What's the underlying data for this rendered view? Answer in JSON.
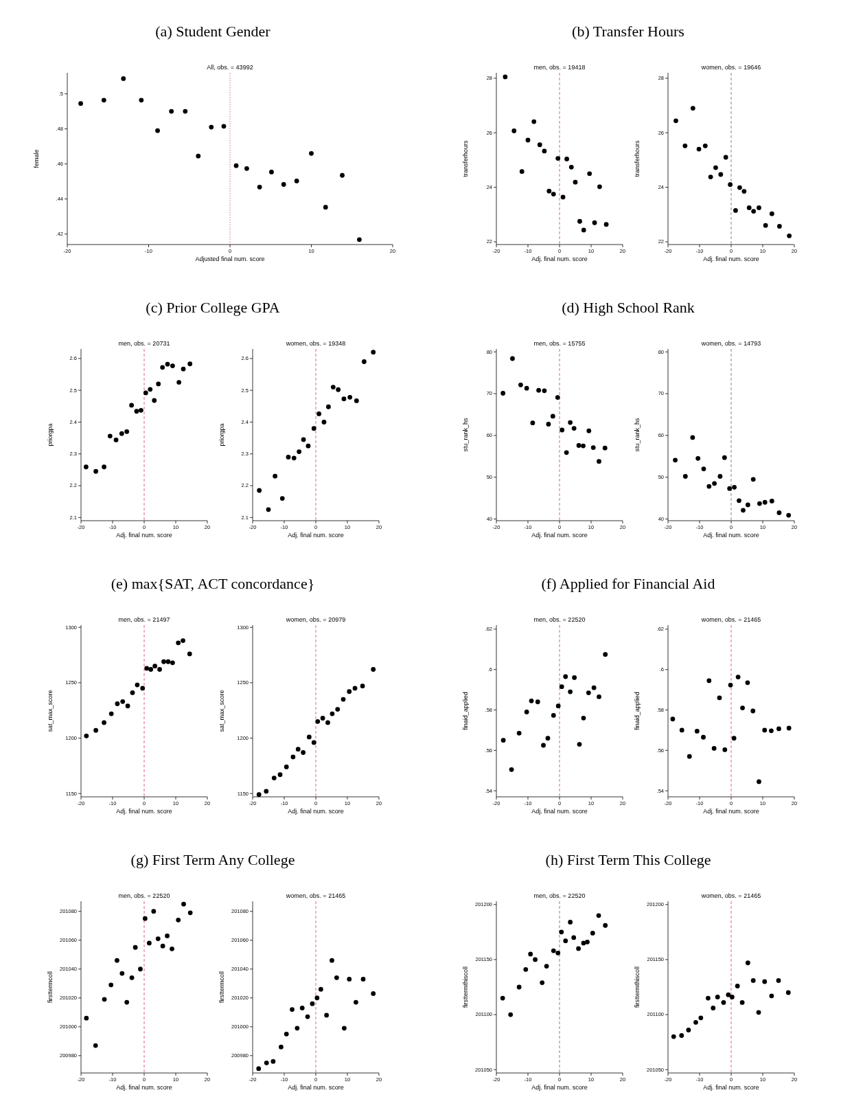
{
  "chart_data": [
    {
      "type": "scatter",
      "title": "(a) Student Gender",
      "subtitle": "All, obs. = 43992",
      "xlabel": "Adjusted final num. score",
      "ylabel": "female",
      "marker": "circle",
      "xlim": [
        -20,
        20
      ],
      "xticks": [
        -20,
        -10,
        0,
        10,
        20
      ],
      "ylim": [
        0.414,
        0.512
      ],
      "yticks": [
        {
          "value": 0.42,
          "label": ".42"
        },
        {
          "value": 0.44,
          "label": ".44"
        },
        {
          "value": 0.46,
          "label": ".46"
        },
        {
          "value": 0.48,
          "label": ".48"
        },
        {
          "value": 0.5,
          "label": ".5"
        }
      ],
      "ref_lines": [
        {
          "axis": "x",
          "value": 0,
          "color": "#e0607e",
          "line_style": "dotted"
        }
      ],
      "x": [
        -18.35,
        -15.5,
        -13.1,
        -10.9,
        -8.9,
        -7.2,
        -5.5,
        -3.9,
        -2.3,
        -0.76,
        0.76,
        2.06,
        3.64,
        5.1,
        6.6,
        8.2,
        10.0,
        11.75,
        13.8,
        15.9
      ],
      "series": [
        {
          "color": "#000000",
          "values": [
            0.4945,
            0.4964,
            0.5087,
            0.4964,
            0.479,
            0.49,
            0.49,
            0.4645,
            0.481,
            0.4815,
            0.459,
            0.4574,
            0.4468,
            0.4554,
            0.4483,
            0.4503,
            0.466,
            0.4353,
            0.4535,
            0.4168
          ]
        }
      ]
    },
    {
      "type": "scatter",
      "title": "(b) Transfer Hours",
      "subtitle": "men, obs. = 19418",
      "xlabel": "Adj. final num. score",
      "ylabel": "transferhours",
      "marker": "circle",
      "xlim": [
        -20,
        20
      ],
      "xticks": [
        -20,
        -10,
        0,
        10,
        20
      ],
      "ylim": [
        21.9,
        28.2
      ],
      "yticks": [
        22,
        24,
        26,
        28
      ],
      "ref_lines": [
        {
          "axis": "x",
          "value": 0,
          "color": "#e0607e",
          "line_style": "dashed"
        }
      ],
      "x": [
        -17.2,
        -14.4,
        -11.9,
        -10.0,
        -8.1,
        -6.25,
        -4.8,
        -3.3,
        -1.9,
        -0.5,
        1.1,
        2.3,
        3.75,
        5.0,
        6.4,
        7.66,
        9.5,
        11.1,
        12.7,
        14.8
      ],
      "series": [
        {
          "color": "#000000",
          "values": [
            28.05,
            26.07,
            24.58,
            25.73,
            26.41,
            25.56,
            25.33,
            23.86,
            23.75,
            25.06,
            23.64,
            25.04,
            24.74,
            24.19,
            22.75,
            22.43,
            24.5,
            22.7,
            24.02,
            22.64
          ]
        }
      ]
    },
    {
      "type": "scatter",
      "subtitle": "women, obs. = 19646",
      "xlabel": "Adj. final num. score",
      "ylabel": "transferhours",
      "marker": "circle",
      "xlim": [
        -20,
        20
      ],
      "xticks": [
        -20,
        -10,
        0,
        10,
        20
      ],
      "ylim": [
        21.9,
        28.2
      ],
      "yticks": [
        22,
        24,
        26,
        28
      ],
      "ref_lines": [
        {
          "axis": "x",
          "value": 0,
          "color": "#808080",
          "line_style": "dashed"
        }
      ],
      "x": [
        -17.5,
        -14.6,
        -12.1,
        -10.2,
        -8.2,
        -6.5,
        -4.9,
        -3.3,
        -1.7,
        -0.3,
        1.4,
        2.7,
        4.1,
        5.7,
        7.1,
        8.8,
        10.9,
        12.9,
        15.3,
        18.4
      ],
      "series": [
        {
          "color": "#000000",
          "values": [
            26.44,
            25.52,
            26.9,
            25.4,
            25.52,
            24.38,
            24.72,
            24.47,
            25.1,
            24.1,
            23.15,
            23.99,
            23.85,
            23.25,
            23.12,
            23.25,
            22.6,
            23.03,
            22.57,
            22.22
          ]
        }
      ]
    },
    {
      "type": "scatter",
      "title": "(c) Prior College GPA",
      "subtitle": "men, obs. = 20731",
      "xlabel": "Adj. final num. score",
      "ylabel": "priorgpa",
      "marker": "circle",
      "xlim": [
        -20,
        20
      ],
      "xticks": [
        -20,
        -10,
        0,
        10,
        20
      ],
      "ylim": [
        2.09,
        2.63
      ],
      "yticks": [
        2.1,
        2.2,
        2.3,
        2.4,
        2.5,
        2.6
      ],
      "ref_lines": [
        {
          "axis": "x",
          "value": 0,
          "color": "#e0607e",
          "line_style": "dashed"
        }
      ],
      "x": [
        -18.4,
        -15.3,
        -12.7,
        -10.8,
        -8.9,
        -7.1,
        -5.5,
        -4.0,
        -2.4,
        -1.0,
        0.5,
        1.9,
        3.2,
        4.5,
        5.8,
        7.4,
        9.0,
        11.0,
        12.4,
        14.5
      ],
      "series": [
        {
          "color": "#000000",
          "values": [
            2.259,
            2.245,
            2.259,
            2.356,
            2.344,
            2.364,
            2.37,
            2.453,
            2.434,
            2.437,
            2.492,
            2.503,
            2.468,
            2.52,
            2.572,
            2.582,
            2.577,
            2.525,
            2.567,
            2.583
          ]
        }
      ]
    },
    {
      "type": "scatter",
      "subtitle": "women, obs. = 19348",
      "xlabel": "Adj. final num. score",
      "ylabel": "priorgpa",
      "marker": "circle",
      "xlim": [
        -20,
        20
      ],
      "xticks": [
        -20,
        -10,
        0,
        10,
        20
      ],
      "ylim": [
        2.09,
        2.63
      ],
      "yticks": [
        2.1,
        2.2,
        2.3,
        2.4,
        2.5,
        2.6
      ],
      "ref_lines": [
        {
          "axis": "x",
          "value": 0,
          "color": "#e0607e",
          "line_style": "dashed"
        }
      ],
      "x": [
        -17.9,
        -15.0,
        -12.9,
        -10.6,
        -8.7,
        -6.9,
        -5.3,
        -3.9,
        -2.4,
        -0.6,
        1.0,
        2.6,
        4.0,
        5.5,
        7.1,
        8.9,
        10.8,
        12.9,
        15.3,
        18.2
      ],
      "series": [
        {
          "color": "#000000",
          "values": [
            2.185,
            2.125,
            2.23,
            2.16,
            2.29,
            2.287,
            2.307,
            2.345,
            2.325,
            2.38,
            2.426,
            2.4,
            2.448,
            2.51,
            2.502,
            2.473,
            2.478,
            2.467,
            2.59,
            2.62
          ]
        }
      ]
    },
    {
      "type": "scatter",
      "title": "(d) High School Rank",
      "subtitle": "men, obs. = 15755",
      "xlabel": "Adj. final num. score",
      "ylabel": "stu_rank_hs",
      "marker": "circle",
      "xlim": [
        -20,
        20
      ],
      "xticks": [
        -20,
        -10,
        0,
        10,
        20
      ],
      "ylim": [
        39.6,
        80.7
      ],
      "yticks": [
        40,
        50,
        60,
        70,
        80
      ],
      "ref_lines": [
        {
          "axis": "x",
          "value": 0,
          "color": "#e0607e",
          "line_style": "dashed"
        }
      ],
      "x": [
        -17.9,
        -14.9,
        -12.3,
        -10.4,
        -8.5,
        -6.6,
        -4.8,
        -3.5,
        -2.1,
        -0.6,
        0.8,
        2.2,
        3.4,
        4.6,
        6.1,
        7.5,
        9.3,
        10.7,
        12.5,
        14.4
      ],
      "series": [
        {
          "color": "#000000",
          "values": [
            70.1,
            78.4,
            72.1,
            71.3,
            63.0,
            70.8,
            70.7,
            62.7,
            64.6,
            69.1,
            61.3,
            55.9,
            63.1,
            61.7,
            57.6,
            57.5,
            61.1,
            57.1,
            53.8,
            57.0
          ]
        }
      ]
    },
    {
      "type": "scatter",
      "subtitle": "women, obs. = 14793",
      "xlabel": "Adj. final num. score",
      "ylabel": "stu_rank_hs",
      "marker": "circle",
      "xlim": [
        -20,
        20
      ],
      "xticks": [
        -20,
        -10,
        0,
        10,
        20
      ],
      "ylim": [
        39.6,
        80.7
      ],
      "yticks": [
        40,
        50,
        60,
        70,
        80
      ],
      "ref_lines": [
        {
          "axis": "x",
          "value": 0,
          "color": "#808080",
          "line_style": "dashed"
        }
      ],
      "x": [
        -17.7,
        -14.5,
        -12.2,
        -10.5,
        -8.7,
        -7.0,
        -5.3,
        -3.5,
        -2.1,
        -0.5,
        1.0,
        2.5,
        3.8,
        5.3,
        7.0,
        9.0,
        10.7,
        12.9,
        15.2,
        18.2
      ],
      "series": [
        {
          "color": "#000000",
          "values": [
            54.1,
            50.2,
            59.5,
            54.5,
            52.0,
            47.8,
            48.5,
            50.2,
            54.7,
            47.3,
            47.6,
            44.4,
            42.1,
            43.4,
            49.5,
            43.7,
            44.0,
            44.3,
            41.5,
            40.9
          ]
        }
      ]
    },
    {
      "type": "scatter",
      "title": "(e) max{SAT, ACT concordance}",
      "subtitle": "men, obs. = 21497",
      "xlabel": "Adj. final num. score",
      "ylabel": "sat_max_score",
      "marker": "circle",
      "xlim": [
        -20,
        20
      ],
      "xticks": [
        -20,
        -10,
        0,
        10,
        20
      ],
      "ylim": [
        1147,
        1302
      ],
      "yticks": [
        1150,
        1200,
        1250,
        1300
      ],
      "ref_lines": [
        {
          "axis": "x",
          "value": 0,
          "color": "#e0607e",
          "line_style": "dashed"
        }
      ],
      "x": [
        -18.3,
        -15.3,
        -12.7,
        -10.4,
        -8.5,
        -6.8,
        -5.2,
        -3.7,
        -2.2,
        -0.5,
        0.8,
        2.1,
        3.4,
        4.9,
        6.2,
        7.6,
        9.0,
        10.8,
        12.3,
        14.4
      ],
      "series": [
        {
          "color": "#000000",
          "values": [
            1202,
            1207,
            1214,
            1222,
            1231,
            1233,
            1229,
            1241,
            1248,
            1245,
            1263,
            1262,
            1265,
            1262,
            1269,
            1269,
            1268,
            1286,
            1288,
            1276
          ]
        }
      ]
    },
    {
      "type": "scatter",
      "subtitle": "women, obs. = 20979",
      "xlabel": "Adj. final num. score",
      "ylabel": "sat_max_score",
      "marker": "circle",
      "xlim": [
        -20,
        20
      ],
      "xticks": [
        -20,
        -10,
        0,
        10,
        20
      ],
      "ylim": [
        1147,
        1302
      ],
      "yticks": [
        1150,
        1200,
        1250,
        1300
      ],
      "ref_lines": [
        {
          "axis": "x",
          "value": 0,
          "color": "#e0607e",
          "line_style": "dashed"
        }
      ],
      "x": [
        -18.0,
        -15.7,
        -13.2,
        -11.3,
        -9.3,
        -7.2,
        -5.6,
        -4.0,
        -2.1,
        -0.6,
        0.6,
        2.2,
        3.8,
        5.2,
        6.9,
        8.7,
        10.6,
        12.4,
        14.8,
        18.2
      ],
      "series": [
        {
          "color": "#000000",
          "values": [
            1149,
            1152,
            1164,
            1167,
            1174,
            1183,
            1190,
            1187,
            1201,
            1196,
            1215,
            1218,
            1214,
            1222,
            1226,
            1235,
            1242,
            1245,
            1247,
            1262
          ]
        }
      ]
    },
    {
      "type": "scatter",
      "title": "(f) Applied for Financial Aid",
      "subtitle": "men, obs. = 22520",
      "xlabel": "Adj. final num. score",
      "ylabel": "finaid_applied",
      "marker": "circle",
      "xlim": [
        -20,
        20
      ],
      "xticks": [
        -20,
        -10,
        0,
        10,
        20
      ],
      "ylim": [
        0.537,
        0.622
      ],
      "yticks": [
        {
          "value": 0.54,
          "label": ".54"
        },
        {
          "value": 0.56,
          "label": ".56"
        },
        {
          "value": 0.58,
          "label": ".58"
        },
        {
          "value": 0.6,
          "label": ".6"
        },
        {
          "value": 0.62,
          "label": ".62"
        }
      ],
      "ref_lines": [
        {
          "axis": "x",
          "value": 0,
          "color": "#e0607e",
          "line_style": "dashed"
        }
      ],
      "x": [
        -17.8,
        -15.2,
        -12.8,
        -10.4,
        -8.9,
        -6.9,
        -5.1,
        -3.7,
        -1.9,
        -0.4,
        0.7,
        1.9,
        3.4,
        4.7,
        6.3,
        7.6,
        9.2,
        10.9,
        12.5,
        14.5
      ],
      "series": [
        {
          "color": "#000000",
          "values": [
            0.565,
            0.5505,
            0.5685,
            0.579,
            0.5845,
            0.584,
            0.5625,
            0.566,
            0.5773,
            0.582,
            0.5915,
            0.5965,
            0.589,
            0.596,
            0.563,
            0.576,
            0.5885,
            0.591,
            0.5865,
            0.6075
          ]
        }
      ]
    },
    {
      "type": "scatter",
      "subtitle": "women, obs. = 21465",
      "xlabel": "Adj. final num. score",
      "ylabel": "finaid_applied",
      "marker": "circle",
      "xlim": [
        -20,
        20
      ],
      "xticks": [
        -20,
        -10,
        0,
        10,
        20
      ],
      "ylim": [
        0.537,
        0.622
      ],
      "yticks": [
        {
          "value": 0.54,
          "label": ".54"
        },
        {
          "value": 0.56,
          "label": ".56"
        },
        {
          "value": 0.58,
          "label": ".58"
        },
        {
          "value": 0.6,
          "label": ".6"
        },
        {
          "value": 0.62,
          "label": ".62"
        }
      ],
      "ref_lines": [
        {
          "axis": "x",
          "value": 0,
          "color": "#e0607e",
          "line_style": "dashed"
        }
      ],
      "x": [
        -18.5,
        -15.6,
        -13.2,
        -10.8,
        -8.8,
        -7.0,
        -5.4,
        -3.7,
        -2.0,
        -0.2,
        0.9,
        2.2,
        3.6,
        5.2,
        6.9,
        8.8,
        10.6,
        12.7,
        15.1,
        18.3
      ],
      "series": [
        {
          "color": "#000000",
          "values": [
            0.5755,
            0.57,
            0.557,
            0.5695,
            0.5665,
            0.5945,
            0.561,
            0.586,
            0.5603,
            0.5923,
            0.566,
            0.5963,
            0.581,
            0.5935,
            0.5795,
            0.5445,
            0.57,
            0.5697,
            0.5707,
            0.571
          ]
        }
      ]
    },
    {
      "type": "scatter",
      "title": "(g) First Term Any College",
      "subtitle": "men, obs. = 22520",
      "xlabel": "Adj. final num. score",
      "ylabel": "firsttermcoll",
      "marker": "circle",
      "xlim": [
        -20,
        20
      ],
      "xticks": [
        -20,
        -10,
        0,
        10,
        20
      ],
      "ylim": [
        200968,
        201087
      ],
      "yticks": [
        200980,
        201000,
        201020,
        201040,
        201060,
        201080
      ],
      "ref_lines": [
        {
          "axis": "x",
          "value": 0,
          "color": "#e0607e",
          "line_style": "dashed"
        }
      ],
      "x": [
        -18.3,
        -15.4,
        -12.6,
        -10.5,
        -8.6,
        -7.0,
        -5.5,
        -3.9,
        -2.8,
        -1.2,
        0.3,
        1.6,
        3.0,
        4.4,
        5.9,
        7.3,
        8.8,
        10.8,
        12.5,
        14.6
      ],
      "series": [
        {
          "color": "#000000",
          "values": [
            201006,
            200987,
            201019,
            201029,
            201046,
            201037,
            201017,
            201034,
            201055,
            201040,
            201075,
            201058,
            201080,
            201061,
            201056,
            201063,
            201054,
            201074,
            201085,
            201079
          ]
        }
      ]
    },
    {
      "type": "scatter",
      "subtitle": "women, obs. = 21465",
      "xlabel": "Adj. final num. score",
      "ylabel": "firsttermcoll",
      "marker": "circle",
      "xlim": [
        -20,
        20
      ],
      "xticks": [
        -20,
        -10,
        0,
        10,
        20
      ],
      "ylim": [
        200968,
        201087
      ],
      "yticks": [
        200980,
        201000,
        201020,
        201040,
        201060,
        201080
      ],
      "ref_lines": [
        {
          "axis": "x",
          "value": 0,
          "color": "#e0607e",
          "line_style": "dashed"
        }
      ],
      "x": [
        -18.1,
        -15.6,
        -13.5,
        -11.0,
        -9.3,
        -7.5,
        -5.9,
        -4.3,
        -2.6,
        -1.1,
        0.4,
        1.6,
        3.4,
        5.1,
        6.6,
        9.0,
        10.6,
        12.7,
        15.0,
        18.2
      ],
      "series": [
        {
          "color": "#000000",
          "values": [
            200971,
            200975,
            200976,
            200986,
            200995,
            201012,
            200999,
            201013,
            201007,
            201016,
            201020,
            201026,
            201008,
            201046,
            201034,
            200999,
            201033,
            201017,
            201033,
            201023
          ]
        }
      ]
    },
    {
      "type": "scatter",
      "title": "(h) First Term This College",
      "subtitle": "men, obs. = 22520",
      "xlabel": "Adj. final num. score",
      "ylabel": "firsttermthiscoll",
      "marker": "circle",
      "xlim": [
        -20,
        20
      ],
      "xticks": [
        -20,
        -10,
        0,
        10,
        20
      ],
      "ylim": [
        201047,
        201203
      ],
      "yticks": [
        201050,
        201100,
        201150,
        201200
      ],
      "ref_lines": [
        {
          "axis": "x",
          "value": 0,
          "color": "#808080",
          "line_style": "dashed"
        }
      ],
      "x": [
        -18.0,
        -15.5,
        -12.8,
        -10.7,
        -9.2,
        -7.7,
        -5.5,
        -4.1,
        -1.9,
        -0.5,
        0.6,
        1.9,
        3.4,
        4.5,
        6.0,
        7.6,
        8.8,
        10.5,
        12.4,
        14.5
      ],
      "series": [
        {
          "color": "#000000",
          "values": [
            201115,
            201100,
            201125,
            201141,
            201155,
            201150,
            201129,
            201144,
            201158,
            201156,
            201175,
            201167,
            201184,
            201170,
            201160,
            201165,
            201166,
            201174,
            201190,
            201181
          ]
        }
      ]
    },
    {
      "type": "scatter",
      "subtitle": "women, obs. = 21465",
      "xlabel": "Adj. final num. score",
      "ylabel": "firsttermthiscoll",
      "marker": "circle",
      "xlim": [
        -20,
        20
      ],
      "xticks": [
        -20,
        -10,
        0,
        10,
        20
      ],
      "ylim": [
        201047,
        201203
      ],
      "yticks": [
        201050,
        201100,
        201150,
        201200
      ],
      "ref_lines": [
        {
          "axis": "x",
          "value": 0,
          "color": "#e0607e",
          "line_style": "dashed"
        }
      ],
      "x": [
        -18.2,
        -15.7,
        -13.5,
        -11.2,
        -9.6,
        -7.3,
        -5.7,
        -4.3,
        -2.4,
        -0.9,
        0.3,
        2.0,
        3.5,
        5.3,
        7.0,
        8.7,
        10.6,
        12.8,
        15.0,
        18.1
      ],
      "series": [
        {
          "color": "#000000",
          "values": [
            201080,
            201081,
            201086,
            201093,
            201097,
            201115,
            201106,
            201116,
            201111,
            201118,
            201116,
            201126,
            201111,
            201147,
            201131,
            201102,
            201130,
            201117,
            201131,
            201120
          ]
        }
      ]
    }
  ]
}
